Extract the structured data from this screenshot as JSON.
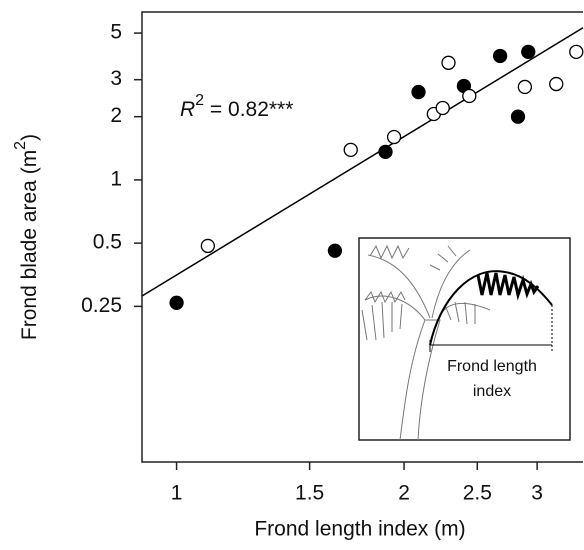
{
  "chart_data": {
    "type": "scatter",
    "x_label": "Frond length index (m)",
    "y_label": {
      "text": "Frond blade area (m",
      "sup": "2",
      "end": ")"
    },
    "annotation": {
      "text": "R",
      "sup": "2",
      "rest": " = 0.82***"
    },
    "inset_label": [
      "Frond length",
      "index"
    ],
    "xscale": "log",
    "yscale": "log",
    "xlim": [
      0.9,
      3.45
    ],
    "ylim": [
      0.0454,
      6.3
    ],
    "xticks": [
      1,
      1.5,
      2,
      2.5,
      3
    ],
    "yticks": [
      0.25,
      0.5,
      1,
      2,
      3,
      5
    ],
    "series": [
      {
        "marker": "filled",
        "color": "#000000",
        "x": [
          1.0,
          1.62,
          1.89,
          2.09,
          2.4,
          2.68,
          2.83,
          2.92
        ],
        "values": [
          0.26,
          0.46,
          1.36,
          2.62,
          2.8,
          3.89,
          2.0,
          4.07
        ]
      },
      {
        "marker": "open",
        "color": "#000000",
        "x": [
          1.1,
          1.7,
          1.94,
          2.19,
          2.25,
          2.29,
          2.44,
          2.89,
          3.18,
          3.38
        ],
        "values": [
          0.485,
          1.39,
          1.6,
          2.06,
          2.2,
          3.61,
          2.51,
          2.77,
          2.86,
          4.07
        ]
      }
    ],
    "fit_line": {
      "x": [
        0.9,
        3.45
      ],
      "y": [
        0.28,
        5.3
      ]
    }
  }
}
